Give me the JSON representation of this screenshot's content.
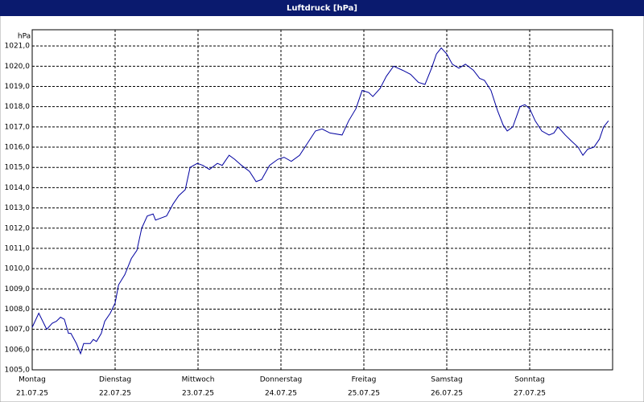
{
  "chart_data": {
    "type": "line",
    "title": "Luftdruck [hPa]",
    "y_unit": "hPa",
    "x": [
      0,
      1.9,
      4.2,
      5.8,
      7,
      8.2,
      9.3,
      10.5,
      11.2,
      12.8,
      14,
      14.9,
      16.8,
      17.7,
      18.6,
      20,
      21,
      22.6,
      24,
      25,
      26.8,
      28.7,
      30.3,
      31.7,
      33.3,
      35,
      35.7,
      37.3,
      38.9,
      40.8,
      42.4,
      44.3,
      45.7,
      47.8,
      49.4,
      51.3,
      53.6,
      55,
      57,
      58.6,
      60.6,
      62.9,
      64.8,
      66.4,
      68.7,
      71.1,
      72.9,
      75,
      77.4,
      79.7,
      82,
      83.9,
      86.2,
      89.7,
      91.6,
      93.7,
      95.5,
      97.4,
      98.6,
      100.7,
      102.5,
      104.6,
      107.2,
      109.5,
      111.8,
      113.7,
      115.6,
      117,
      118.4,
      120,
      121.6,
      123.5,
      125.4,
      127.7,
      129.5,
      130.9,
      132.8,
      134.7,
      136.3,
      137.5,
      139.1,
      141.2,
      142.6,
      144,
      145.6,
      147.5,
      149.6,
      151,
      152.2,
      154.3,
      156.1,
      158,
      159.4,
      160.8,
      162.6,
      164.2,
      165.4,
      166.8
    ],
    "series": [
      {
        "name": "Luftdruck",
        "color": "#0000a0",
        "values": [
          1007.1,
          1007.8,
          1007.0,
          1007.3,
          1007.4,
          1007.6,
          1007.5,
          1006.8,
          1006.8,
          1006.3,
          1005.8,
          1006.3,
          1006.3,
          1006.5,
          1006.4,
          1006.8,
          1007.4,
          1007.8,
          1008.3,
          1009.2,
          1009.7,
          1010.5,
          1010.9,
          1012.0,
          1012.6,
          1012.7,
          1012.4,
          1012.5,
          1012.6,
          1013.2,
          1013.6,
          1013.9,
          1015.0,
          1015.2,
          1015.1,
          1014.9,
          1015.2,
          1015.1,
          1015.6,
          1015.4,
          1015.1,
          1014.8,
          1014.3,
          1014.4,
          1015.1,
          1015.4,
          1015.5,
          1015.3,
          1015.6,
          1016.2,
          1016.8,
          1016.9,
          1016.7,
          1016.6,
          1017.3,
          1017.9,
          1018.8,
          1018.7,
          1018.5,
          1018.9,
          1019.5,
          1020.0,
          1019.8,
          1019.6,
          1019.2,
          1019.1,
          1019.9,
          1020.6,
          1020.9,
          1020.6,
          1020.1,
          1019.9,
          1020.1,
          1019.8,
          1019.4,
          1019.3,
          1018.8,
          1017.8,
          1017.1,
          1016.8,
          1017.0,
          1018.0,
          1018.1,
          1017.9,
          1017.3,
          1016.8,
          1016.6,
          1016.7,
          1017.0,
          1016.6,
          1016.3,
          1016.0,
          1015.6,
          1015.9,
          1016.0,
          1016.4,
          1017.0,
          1017.3
        ]
      }
    ],
    "xlim": [
      0,
      168
    ],
    "xticks": [
      {
        "value": 0,
        "label": "Montag"
      },
      {
        "value": 24,
        "label": "Dienstag"
      },
      {
        "value": 48,
        "label": "Mittwoch"
      },
      {
        "value": 72,
        "label": "Donnerstag"
      },
      {
        "value": 96,
        "label": "Freitag"
      },
      {
        "value": 120,
        "label": "Samstag"
      },
      {
        "value": 144,
        "label": "Sonntag"
      }
    ],
    "xtick_dates": [
      "21.07.25",
      "22.07.25",
      "23.07.25",
      "24.07.25",
      "25.07.25",
      "26.07.25",
      "27.07.25"
    ],
    "ylim": [
      1005,
      1021.8
    ],
    "yticks": [
      {
        "value": 1005,
        "label": "1005,0"
      },
      {
        "value": 1006,
        "label": "1006,0"
      },
      {
        "value": 1007,
        "label": "1007,0"
      },
      {
        "value": 1008,
        "label": "1008,0"
      },
      {
        "value": 1009,
        "label": "1009,0"
      },
      {
        "value": 1010,
        "label": "1010,0"
      },
      {
        "value": 1011,
        "label": "1011,0"
      },
      {
        "value": 1012,
        "label": "1012,0"
      },
      {
        "value": 1013,
        "label": "1013,0"
      },
      {
        "value": 1014,
        "label": "1014,0"
      },
      {
        "value": 1015,
        "label": "1015,0"
      },
      {
        "value": 1016,
        "label": "1016,0"
      },
      {
        "value": 1017,
        "label": "1017,0"
      },
      {
        "value": 1018,
        "label": "1018,0"
      },
      {
        "value": 1019,
        "label": "1019,0"
      },
      {
        "value": 1020,
        "label": "1020,0"
      },
      {
        "value": 1021,
        "label": "1021,0"
      }
    ],
    "grid": true
  }
}
